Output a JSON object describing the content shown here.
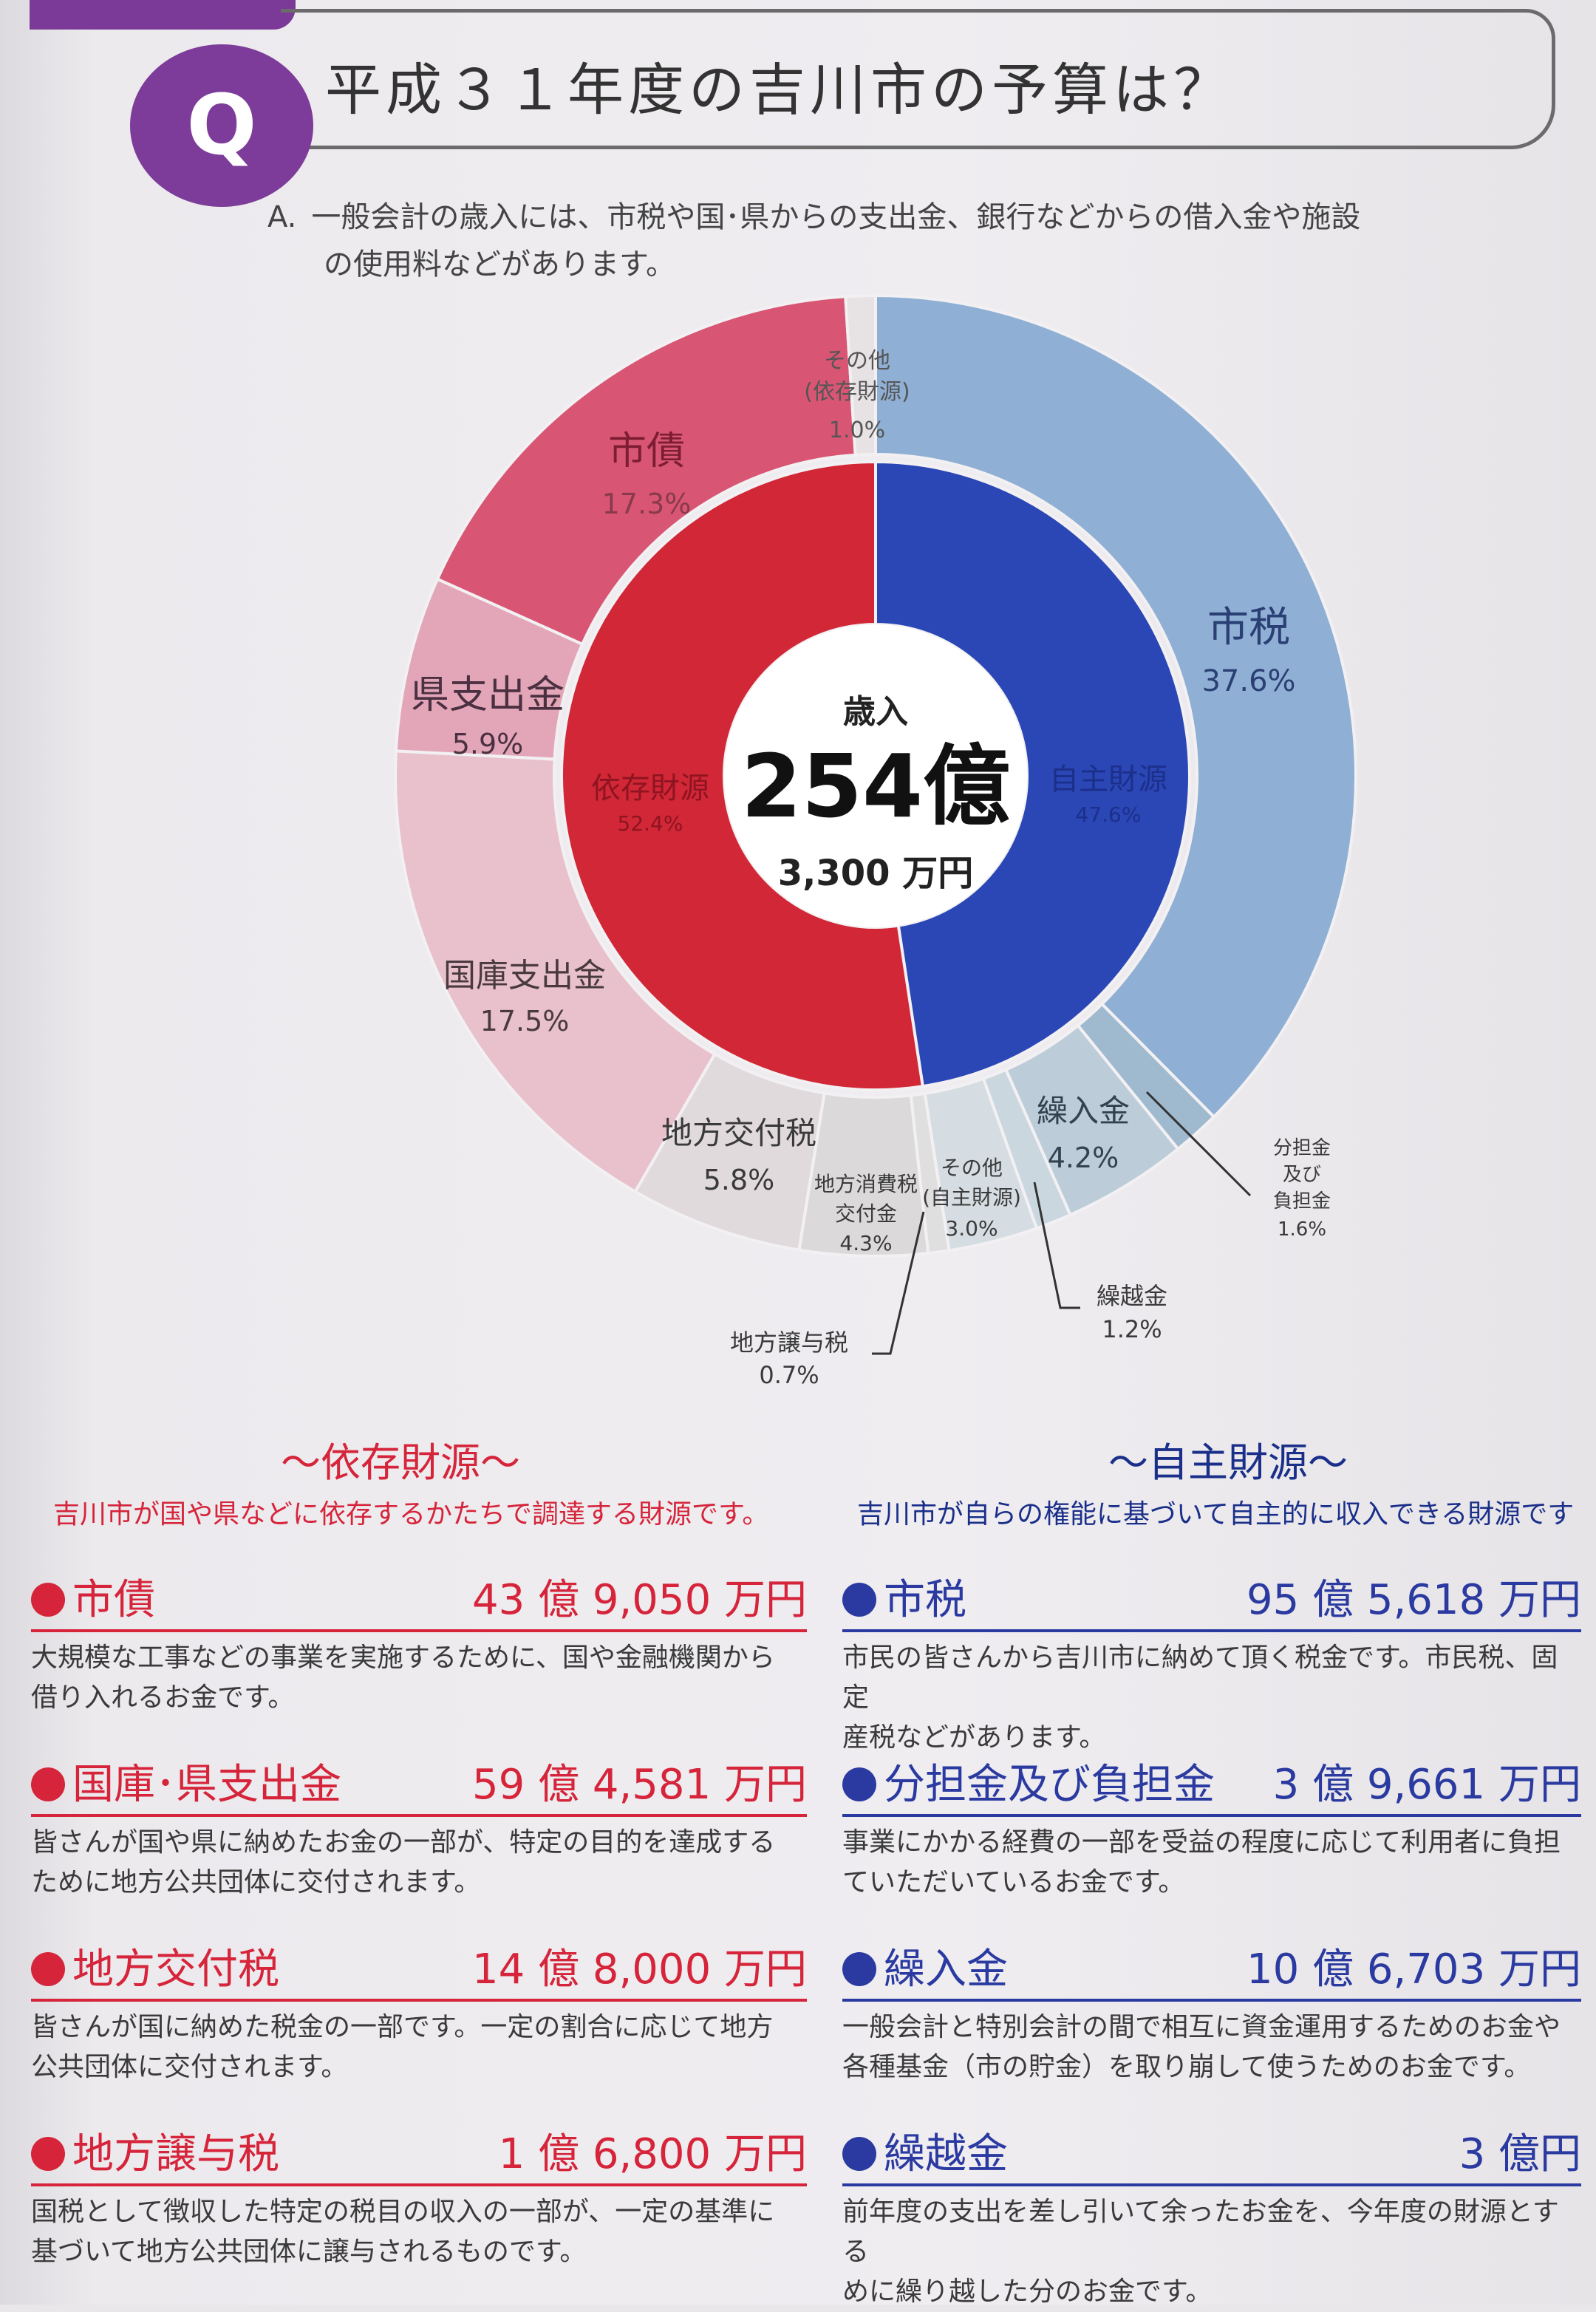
{
  "title": "平成３１年度の吉川市の予算は？",
  "q_mark": "Q",
  "answer": {
    "prefix": "A.",
    "line1": "一般会計の歳入には、市税や国･県からの支出金、銀行などからの借入金や施設",
    "line2": "の使用料などがあります。"
  },
  "chart_data": {
    "type": "pie",
    "center": {
      "label": "歳入",
      "amount": "254億",
      "sub": "3,300 万円"
    },
    "inner_ring": [
      {
        "name": "自主財源",
        "value": 47.6,
        "label": "47.6%",
        "color": "#2a47b5"
      },
      {
        "name": "依存財源",
        "value": 52.4,
        "label": "52.4%",
        "color": "#d12737"
      }
    ],
    "outer_ring": [
      {
        "name": "市税",
        "value": 37.6,
        "label": "37.6%",
        "color": "#8fb0d4"
      },
      {
        "name": "分担金及び負担金",
        "value": 1.6,
        "label": "1.6%",
        "color": "#9fb9cf"
      },
      {
        "name": "繰入金",
        "value": 4.2,
        "label": "4.2%",
        "color": "#bccdd9"
      },
      {
        "name": "繰越金",
        "value": 1.2,
        "label": "1.2%",
        "color": "#cad7df"
      },
      {
        "name": "その他（自主財源）",
        "value": 3.0,
        "label": "3.0%",
        "color": "#d5dde2"
      },
      {
        "name": "地方譲与税",
        "value": 0.7,
        "label": "0.7%",
        "color": "#e0dfe0"
      },
      {
        "name": "地方消費税交付金",
        "value": 4.3,
        "label": "4.3%",
        "color": "#dcd9db"
      },
      {
        "name": "地方交付税",
        "value": 5.8,
        "label": "5.8%",
        "color": "#e1dadc"
      },
      {
        "name": "国庫支出金",
        "value": 17.5,
        "label": "17.5%",
        "color": "#e8c1cc"
      },
      {
        "name": "県支出金",
        "value": 5.9,
        "label": "5.9%",
        "color": "#e3a6b8"
      },
      {
        "name": "市債",
        "value": 17.3,
        "label": "17.3%",
        "color": "#d85674"
      },
      {
        "name": "その他（依存財源）",
        "value": 1.0,
        "label": "1.0%",
        "color": "#e7e2e4"
      }
    ],
    "labels": {
      "shizei": "市税",
      "bunpu1": "分担金",
      "bunpu2": "及び",
      "bunpu3": "負担金",
      "kurikomi": "繰入金",
      "kurikoshi": "繰越金",
      "sonota_j1": "その他",
      "sonota_j2": "(自主財源)",
      "joyo": "地方譲与税",
      "shohi1": "地方消費税",
      "shohi2": "交付金",
      "kofu": "地方交付税",
      "kokko": "国庫支出金",
      "ken": "県支出金",
      "shisai": "市債",
      "sonota_i1": "その他",
      "sonota_i2": "(依存財源)",
      "jishu": "自主財源",
      "izon": "依存財源"
    }
  },
  "izon": {
    "heading": "～依存財源～",
    "desc": "吉川市が国や県などに依存するかたちで調達する財源です。",
    "items": [
      {
        "name": "市債",
        "amount": "43 億 9,050 万円",
        "desc1": "大規模な工事などの事業を実施するために、国や金融機関から",
        "desc2": "借り入れるお金です。"
      },
      {
        "name": "国庫･県支出金",
        "amount": "59 億 4,581 万円",
        "desc1": "皆さんが国や県に納めたお金の一部が、特定の目的を達成する",
        "desc2": "ために地方公共団体に交付されます。"
      },
      {
        "name": "地方交付税",
        "amount": "14 億 8,000 万円",
        "desc1": "皆さんが国に納めた税金の一部です。一定の割合に応じて地方",
        "desc2": "公共団体に交付されます。"
      },
      {
        "name": "地方譲与税",
        "amount": "1 億 6,800 万円",
        "desc1": "国税として徴収した特定の税目の収入の一部が、一定の基準に",
        "desc2": "基づいて地方公共団体に譲与されるものです。"
      }
    ]
  },
  "jishu": {
    "heading": "～自主財源～",
    "desc": "吉川市が自らの権能に基づいて自主的に収入できる財源です",
    "items": [
      {
        "name": "市税",
        "amount": "95 億 5,618 万円",
        "desc1": "市民の皆さんから吉川市に納めて頂く税金です。市民税、固定",
        "desc2": "産税などがあります。"
      },
      {
        "name": "分担金及び負担金",
        "amount": "3 億 9,661 万円",
        "desc1": "事業にかかる経費の一部を受益の程度に応じて利用者に負担",
        "desc2": "ていただいているお金です。"
      },
      {
        "name": "繰入金",
        "amount": "10 億 6,703 万円",
        "desc1": "一般会計と特別会計の間で相互に資金運用するためのお金や",
        "desc2": "各種基金（市の貯金）を取り崩して使うためのお金です。"
      },
      {
        "name": "繰越金",
        "amount": "3 億円",
        "desc1": "前年度の支出を差し引いて余ったお金を、今年度の財源とする",
        "desc2": "めに繰り越した分のお金です。"
      }
    ]
  }
}
